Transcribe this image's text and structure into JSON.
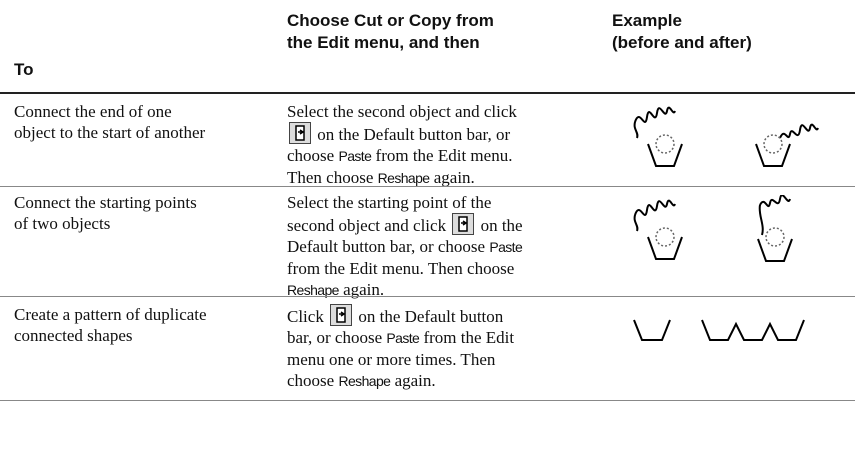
{
  "header": {
    "col1": [
      "To"
    ],
    "col2": [
      "Choose Cut or Copy from",
      "the Edit menu, and then"
    ],
    "col3": [
      "Example",
      "(before and after)"
    ]
  },
  "table": {
    "rows": [
      {
        "to": [
          "Connect the end of one",
          "object to the start of another"
        ],
        "action": [
          "Select the second object and click",
          "on the Default button bar, or",
          "choose",
          "Paste",
          "from the Edit menu.",
          "Then choose",
          "Reshape",
          "again."
        ]
      },
      {
        "to": [
          "Connect the starting points",
          "of two objects"
        ],
        "action": [
          "Select the starting point of the",
          "second object and click",
          "on the",
          "Default button bar, or choose",
          "Paste",
          "from the Edit menu. Then choose",
          "Reshape",
          "again."
        ]
      },
      {
        "to": [
          "Create a pattern of duplicate",
          "connected shapes"
        ],
        "action": [
          "Click",
          "on the Default button",
          "bar, or choose",
          "Paste",
          "from the Edit",
          "menu one or more times. Then",
          "choose",
          "Reshape",
          "again."
        ]
      }
    ]
  }
}
